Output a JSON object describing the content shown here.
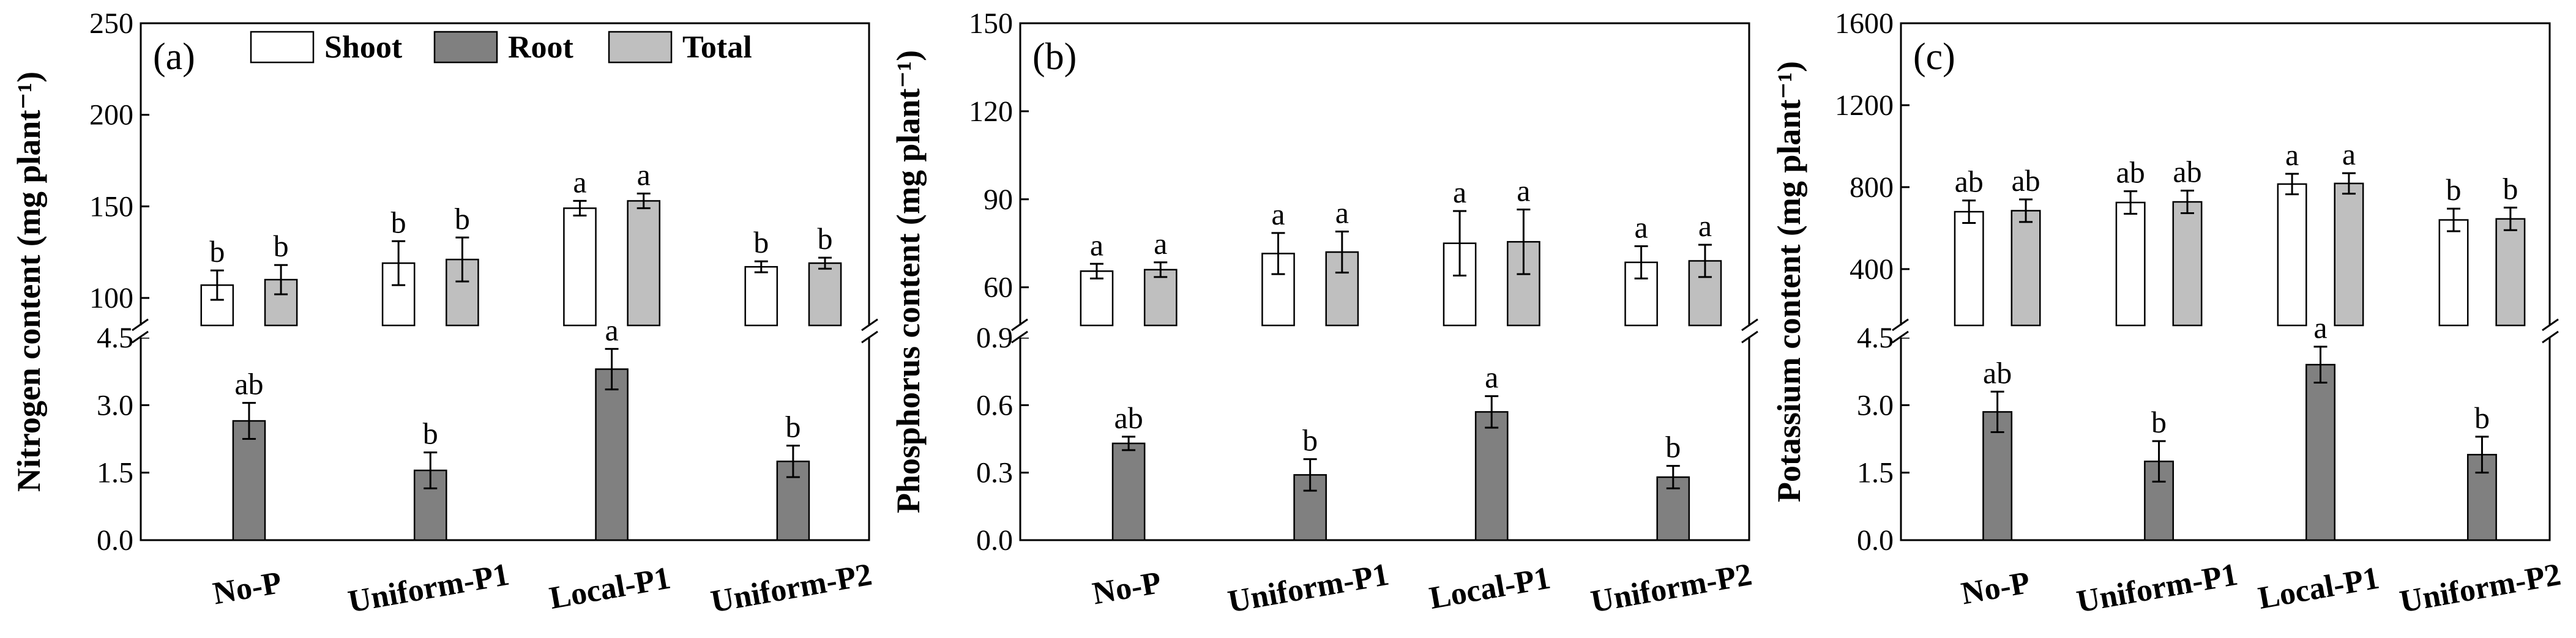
{
  "colors": {
    "shoot": "#ffffff",
    "root": "#808080",
    "total": "#bfbfbf",
    "axis": "#000000"
  },
  "legend": [
    {
      "key": "shoot",
      "label": "Shoot"
    },
    {
      "key": "root",
      "label": "Root"
    },
    {
      "key": "total",
      "label": "Total"
    }
  ],
  "chart_data": [
    {
      "type": "bar",
      "panel_label": "(a)",
      "ylabel": "Nitrogen content (mg plant⁻¹)",
      "categories": [
        "No-P",
        "Uniform-P1",
        "Local-P1",
        "Uniform-P2"
      ],
      "axis_break": true,
      "upper_ylim": [
        85,
        250
      ],
      "upper_ticks": [
        100,
        150,
        200,
        250
      ],
      "lower_ylim": [
        0,
        4.5
      ],
      "lower_ticks": [
        0.0,
        1.5,
        3.0,
        4.5
      ],
      "lower_tick_labels": [
        "0.0",
        "1.5",
        "3.0",
        "4.5"
      ],
      "series": [
        {
          "name": "Shoot",
          "key": "shoot",
          "axis": "upper",
          "values": [
            107,
            119,
            149,
            117
          ],
          "errors": [
            8,
            12,
            4,
            3
          ],
          "letters": [
            "b",
            "b",
            "a",
            "b"
          ]
        },
        {
          "name": "Root",
          "key": "root",
          "axis": "lower",
          "values": [
            2.65,
            1.55,
            3.8,
            1.75
          ],
          "errors": [
            0.4,
            0.4,
            0.45,
            0.35
          ],
          "letters": [
            "ab",
            "b",
            "a",
            "b"
          ]
        },
        {
          "name": "Total",
          "key": "total",
          "axis": "upper",
          "values": [
            110,
            121,
            153,
            119
          ],
          "errors": [
            8,
            12,
            4,
            3
          ],
          "letters": [
            "b",
            "b",
            "a",
            "b"
          ]
        }
      ]
    },
    {
      "type": "bar",
      "panel_label": "(b)",
      "ylabel": "Phosphorus content (mg plant⁻¹)",
      "categories": [
        "No-P",
        "Uniform-P1",
        "Local-P1",
        "Uniform-P2"
      ],
      "axis_break": true,
      "upper_ylim": [
        47,
        150
      ],
      "upper_ticks": [
        60,
        90,
        120,
        150
      ],
      "lower_ylim": [
        0,
        0.9
      ],
      "lower_ticks": [
        0.0,
        0.3,
        0.6,
        0.9
      ],
      "lower_tick_labels": [
        "0.0",
        "0.3",
        "0.6",
        "0.9"
      ],
      "series": [
        {
          "name": "Shoot",
          "key": "shoot",
          "axis": "upper",
          "values": [
            65.5,
            71.5,
            75,
            68.5
          ],
          "errors": [
            2.5,
            7,
            11,
            5.5
          ],
          "letters": [
            "a",
            "a",
            "a",
            "a"
          ]
        },
        {
          "name": "Root",
          "key": "root",
          "axis": "lower",
          "values": [
            0.43,
            0.29,
            0.57,
            0.28
          ],
          "errors": [
            0.03,
            0.07,
            0.07,
            0.05
          ],
          "letters": [
            "ab",
            "b",
            "a",
            "b"
          ]
        },
        {
          "name": "Total",
          "key": "total",
          "axis": "upper",
          "values": [
            66,
            72,
            75.5,
            69
          ],
          "errors": [
            2.5,
            7,
            11,
            5.5
          ],
          "letters": [
            "a",
            "a",
            "a",
            "a"
          ]
        }
      ]
    },
    {
      "type": "bar",
      "panel_label": "(c)",
      "ylabel": "Potassium content (mg plant⁻¹)",
      "categories": [
        "No-P",
        "Uniform-P1",
        "Local-P1",
        "Uniform-P2"
      ],
      "axis_break": true,
      "upper_ylim": [
        125,
        1600
      ],
      "upper_ticks": [
        400,
        800,
        1200,
        1600
      ],
      "lower_ylim": [
        0,
        4.5
      ],
      "lower_ticks": [
        0.0,
        1.5,
        3.0,
        4.5
      ],
      "lower_tick_labels": [
        "0.0",
        "1.5",
        "3.0",
        "4.5"
      ],
      "series": [
        {
          "name": "Shoot",
          "key": "shoot",
          "axis": "upper",
          "values": [
            680,
            725,
            815,
            640
          ],
          "errors": [
            55,
            55,
            50,
            55
          ],
          "letters": [
            "ab",
            "ab",
            "a",
            "b"
          ]
        },
        {
          "name": "Root",
          "key": "root",
          "axis": "lower",
          "values": [
            2.85,
            1.75,
            3.9,
            1.9
          ],
          "errors": [
            0.45,
            0.45,
            0.4,
            0.4
          ],
          "letters": [
            "ab",
            "b",
            "a",
            "b"
          ]
        },
        {
          "name": "Total",
          "key": "total",
          "axis": "upper",
          "values": [
            685,
            728,
            818,
            645
          ],
          "errors": [
            55,
            55,
            50,
            55
          ],
          "letters": [
            "ab",
            "ab",
            "a",
            "b"
          ]
        }
      ]
    }
  ]
}
